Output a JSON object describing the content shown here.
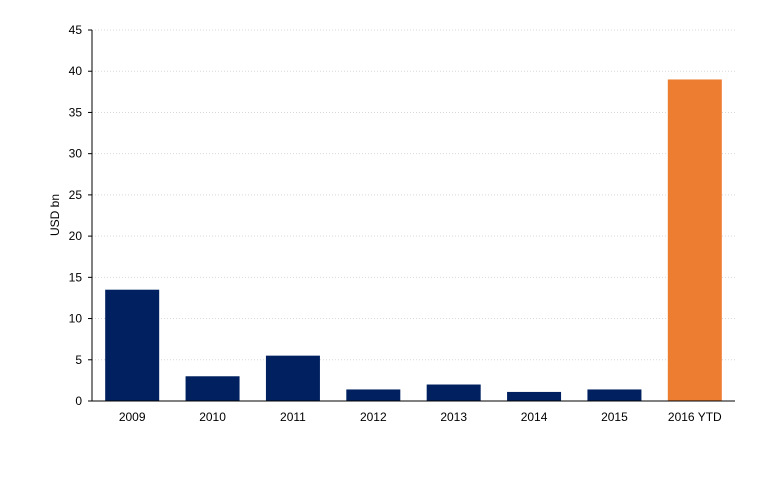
{
  "chart_data": {
    "type": "bar",
    "ylabel": "USD bn",
    "xlabel": "",
    "categories": [
      "2009",
      "2010",
      "2011",
      "2012",
      "2013",
      "2014",
      "2015",
      "2016 YTD"
    ],
    "values": [
      13.5,
      3.0,
      5.5,
      1.4,
      2.0,
      1.1,
      1.4,
      39.0
    ],
    "colors": [
      "#002060",
      "#002060",
      "#002060",
      "#002060",
      "#002060",
      "#002060",
      "#002060",
      "#ED7D31"
    ],
    "ylim": [
      0,
      45
    ],
    "yticks": [
      "0",
      "5",
      "10",
      "15",
      "20",
      "25",
      "30",
      "35",
      "40",
      "45"
    ],
    "grid": true,
    "legend": "none"
  }
}
